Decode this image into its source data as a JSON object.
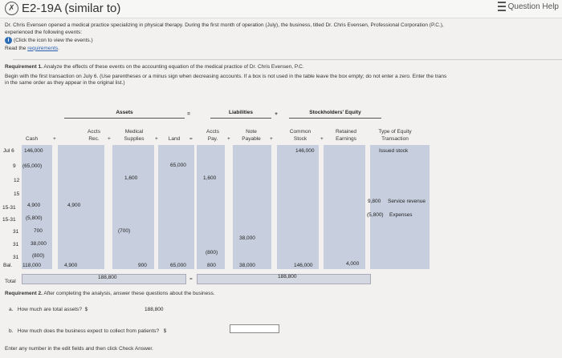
{
  "header": {
    "title": "E2-19A (similar to)",
    "help": "Question Help"
  },
  "intro": {
    "line1": "Dr. Chris Evensen opened a medical practice specializing in physical therapy. During the first month of operation (July), the business, titled Dr. Chris Evensen, Professional Corporation (P.C.),",
    "line2": "experienced the following events:",
    "info": "(Click the icon to view the events.)",
    "read_prefix": "Read the ",
    "read_link": "requirements",
    "read_suffix": "."
  },
  "req1": {
    "heading": "Requirement 1.",
    "text": " Analyze the effects of these events on the accounting equation of the medical practice of Dr. Chris Evensen, P.C.",
    "line2": "Begin with the first transaction on July 6. (Use parentheses or a minus sign when decreasing accounts. If a box is not used in the table leave the box empty; do not enter a zero. Enter the trans",
    "line3": "in the same order as they appear in the original list.)"
  },
  "table": {
    "group_assets": "Assets",
    "group_liabilities": "Liabilities",
    "group_equity": "Stockholders' Equity",
    "eq": "=",
    "plus": "+",
    "col_headers": {
      "cash": "Cash",
      "ar1": "Accts",
      "ar2": "Rec.",
      "sup1": "Medical",
      "sup2": "Supplies",
      "land": "Land",
      "ap1": "Accts",
      "ap2": "Pay.",
      "np1": "Note",
      "np2": "Payable",
      "cs1": "Common",
      "cs2": "Stock",
      "re1": "Retained",
      "re2": "Earnings",
      "te1": "Type of Equity",
      "te2": "Transaction"
    },
    "rows": [
      {
        "label": "Jul 6",
        "cash": "146,000",
        "cs": "146,000",
        "type": "Issued stock"
      },
      {
        "label": "9",
        "cash": "(65,000)",
        "land": "65,000"
      },
      {
        "label": "12",
        "sup": "1,600",
        "ap": "1,600"
      },
      {
        "label": "15"
      },
      {
        "label": "15-31",
        "cash": "4,900",
        "ar": "4,900",
        "re": "9,800",
        "type": "Service revenue"
      },
      {
        "label": "15-31",
        "cash": "(5,800)",
        "re": "(5,800)",
        "type": "Expenses"
      },
      {
        "label": "31",
        "cash": "700",
        "sup": "(700)"
      },
      {
        "label": "31",
        "cash": "38,000",
        "np": "38,000"
      },
      {
        "label": "31",
        "cash": "(800)",
        "ap": "(800)"
      }
    ],
    "bal": {
      "label": "Bal.",
      "cash": "118,000",
      "ar": "4,900",
      "sup": "900",
      "land": "65,000",
      "ap": "800",
      "np": "38,000",
      "cs": "146,000",
      "re": "4,000"
    },
    "total": {
      "label": "Total",
      "assets": "188,800",
      "liab_eq": "188,800"
    }
  },
  "req2": {
    "heading": "Requirement 2.",
    "text": " After completing the analysis, answer these questions about the business.",
    "qa_label": "a.",
    "qa": "How much are total assets?",
    "qa_dollar": "$",
    "qa_value": "188,800",
    "qb_label": "b.",
    "qb": "How much does the business expect to collect from patients?",
    "qb_dollar": "$",
    "qb_value": ""
  },
  "footer": "Enter any number in the edit fields and then click Check Answer."
}
